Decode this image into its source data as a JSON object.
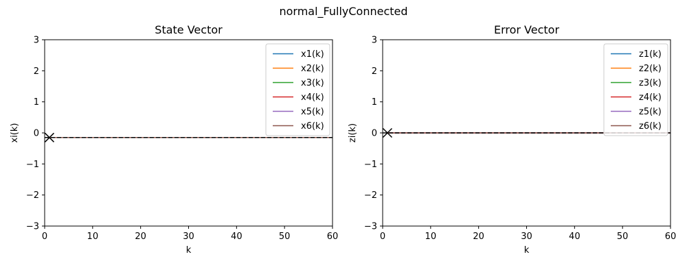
{
  "figure": {
    "suptitle": "normal_FullyConnected"
  },
  "chart_data": [
    {
      "type": "line",
      "title": "State Vector",
      "xlabel": "k",
      "ylabel": "xi(k)",
      "xlim": [
        0,
        60
      ],
      "ylim": [
        -3,
        3
      ],
      "xticks": [
        0,
        10,
        20,
        30,
        40,
        50,
        60
      ],
      "yticks": [
        -3,
        -2,
        -1,
        0,
        1,
        2,
        3
      ],
      "grid": false,
      "legend": "top-right",
      "series": [
        {
          "name": "x1(k)",
          "color": "#1f77b4",
          "x": [
            1,
            60
          ],
          "y": [
            -0.15,
            -0.15
          ]
        },
        {
          "name": "x2(k)",
          "color": "#ff7f0e",
          "x": [
            1,
            60
          ],
          "y": [
            -0.15,
            -0.15
          ]
        },
        {
          "name": "x3(k)",
          "color": "#2ca02c",
          "x": [
            1,
            60
          ],
          "y": [
            -0.15,
            -0.15
          ]
        },
        {
          "name": "x4(k)",
          "color": "#d62728",
          "x": [
            1,
            60
          ],
          "y": [
            -0.15,
            -0.15
          ]
        },
        {
          "name": "x5(k)",
          "color": "#9467bd",
          "x": [
            1,
            60
          ],
          "y": [
            -0.15,
            -0.15
          ]
        },
        {
          "name": "x6(k)",
          "color": "#8c564b",
          "x": [
            1,
            60
          ],
          "y": [
            -0.15,
            -0.15
          ]
        }
      ],
      "reference_line": {
        "style": "dashed",
        "color": "#000000",
        "y": -0.15
      },
      "marker": {
        "symbol": "x",
        "x": 1,
        "y": -0.15
      }
    },
    {
      "type": "line",
      "title": "Error Vector",
      "xlabel": "k",
      "ylabel": "zi(k)",
      "xlim": [
        0,
        60
      ],
      "ylim": [
        -3,
        3
      ],
      "xticks": [
        0,
        10,
        20,
        30,
        40,
        50,
        60
      ],
      "yticks": [
        -3,
        -2,
        -1,
        0,
        1,
        2,
        3
      ],
      "grid": false,
      "legend": "top-right",
      "series": [
        {
          "name": "z1(k)",
          "color": "#1f77b4",
          "x": [
            1,
            60
          ],
          "y": [
            0,
            0
          ]
        },
        {
          "name": "z2(k)",
          "color": "#ff7f0e",
          "x": [
            1,
            60
          ],
          "y": [
            0,
            0
          ]
        },
        {
          "name": "z3(k)",
          "color": "#2ca02c",
          "x": [
            1,
            60
          ],
          "y": [
            0,
            0
          ]
        },
        {
          "name": "z4(k)",
          "color": "#d62728",
          "x": [
            1,
            60
          ],
          "y": [
            0,
            0
          ]
        },
        {
          "name": "z5(k)",
          "color": "#9467bd",
          "x": [
            1,
            60
          ],
          "y": [
            0,
            0
          ]
        },
        {
          "name": "z6(k)",
          "color": "#8c564b",
          "x": [
            1,
            60
          ],
          "y": [
            0,
            0
          ]
        }
      ],
      "reference_line": {
        "style": "dashed",
        "color": "#000000",
        "y": 0
      },
      "marker": {
        "symbol": "x",
        "x": 1,
        "y": 0
      }
    }
  ]
}
